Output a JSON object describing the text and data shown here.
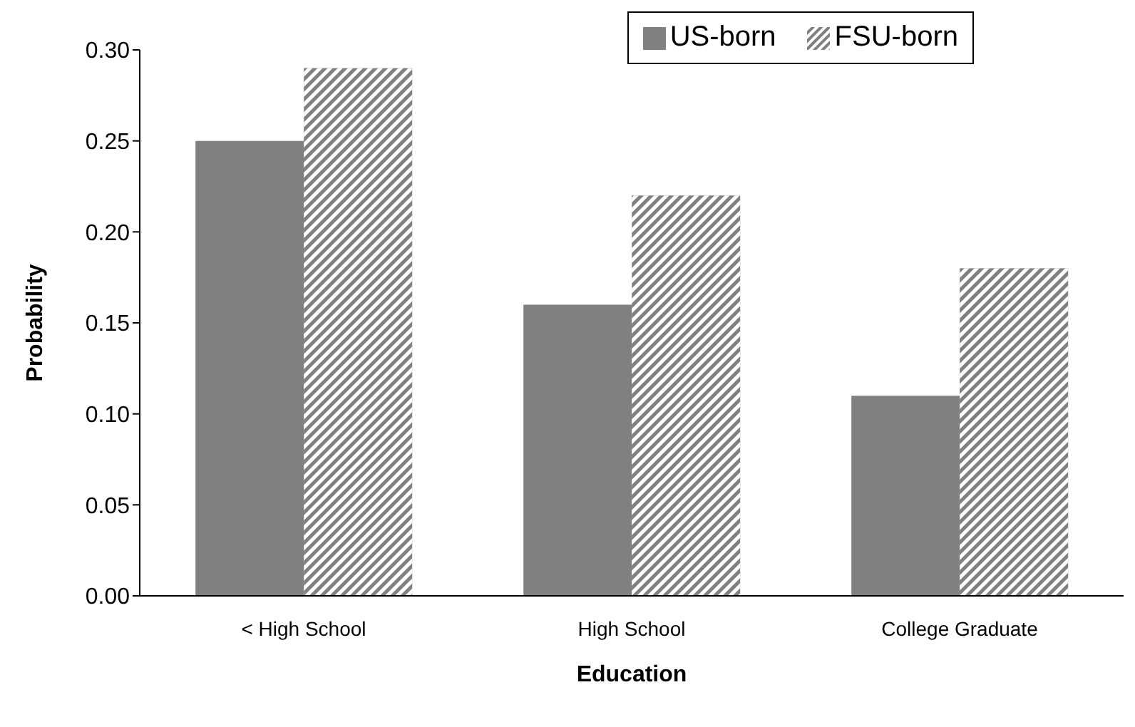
{
  "chart_data": {
    "type": "bar",
    "xlabel": "Education",
    "ylabel": "Probability",
    "categories": [
      "< High School",
      "High School",
      "College Graduate"
    ],
    "series": [
      {
        "name": "US-born",
        "color": "#808080",
        "values": [
          0.25,
          0.16,
          0.11
        ]
      },
      {
        "name": "FSU-born",
        "color": "#808080",
        "values": [
          0.29,
          0.22,
          0.18
        ]
      }
    ],
    "ylim": [
      0,
      0.3
    ],
    "yticks": [
      {
        "value": 0,
        "label": "0.00"
      },
      {
        "value": 0.05,
        "label": "0.05"
      },
      {
        "value": 0.1,
        "label": "0.10"
      },
      {
        "value": 0.15,
        "label": "0.15"
      },
      {
        "value": 0.2,
        "label": "0.20"
      },
      {
        "value": 0.25,
        "label": "0.25"
      },
      {
        "value": 0.3,
        "label": "0.30"
      }
    ],
    "grid": false,
    "legend": "top right"
  }
}
